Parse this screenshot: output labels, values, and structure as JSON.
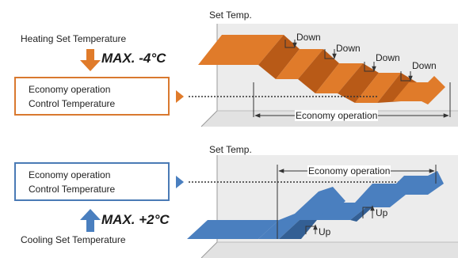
{
  "colors": {
    "heating": "#e07b2a",
    "heating_dark": "#b85a17",
    "cooling": "#4a7fbf",
    "cooling_dark": "#335f94",
    "panel": "#ececec",
    "panel_edge": "#bdbdbd",
    "orange_box": "#d9792f",
    "blue_box": "#4a7ab5"
  },
  "heating": {
    "axis_label": "Set Temp.",
    "set_label": "Heating Set Temperature",
    "max_label": "MAX. -4°C",
    "box_line1": "Economy operation",
    "box_line2": "Control Temperature",
    "step_labels": [
      "Down",
      "Down",
      "Down",
      "Down"
    ],
    "span_label": "Economy operation",
    "arrow_icon": "down-arrow-icon"
  },
  "cooling": {
    "axis_label": "Set Temp.",
    "set_label": "Cooling Set Temperature",
    "max_label": "MAX. +2°C",
    "box_line1": "Economy operation",
    "box_line2": "Control Temperature",
    "step_labels": [
      "Up",
      "Up"
    ],
    "span_label": "Economy operation",
    "arrow_icon": "up-arrow-icon"
  }
}
